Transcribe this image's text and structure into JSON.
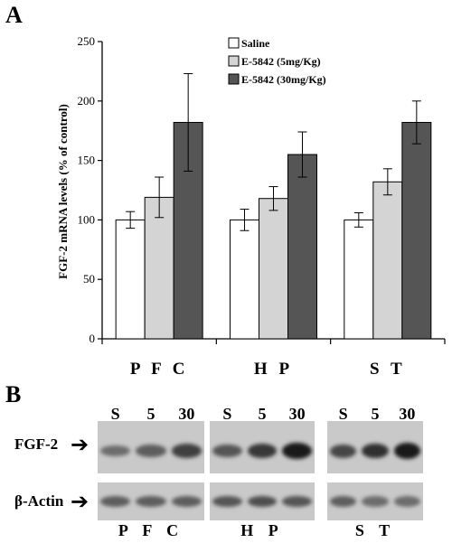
{
  "panel_a_label": "A",
  "panel_b_label": "B",
  "chart_data": {
    "type": "bar",
    "ylabel": "FGF-2 mRNA levels (% of control)",
    "ylim": [
      0,
      250
    ],
    "yticks": [
      0,
      50,
      100,
      150,
      200,
      250
    ],
    "categories": [
      "P F C",
      "H P",
      "S T"
    ],
    "legend_position": "top-right",
    "series": [
      {
        "name": "Saline",
        "color": "#ffffff",
        "values": [
          100,
          100,
          100
        ],
        "errors": [
          7,
          9,
          6
        ]
      },
      {
        "name": "E-5842 (5mg/Kg)",
        "color": "#d4d4d4",
        "values": [
          119,
          118,
          132
        ],
        "errors": [
          17,
          10,
          11
        ]
      },
      {
        "name": "E-5842 (30mg/Kg)",
        "color": "#555555",
        "values": [
          182,
          155,
          182
        ],
        "errors": [
          41,
          19,
          18
        ]
      }
    ]
  },
  "blot": {
    "lane_labels": [
      "S",
      "5",
      "30"
    ],
    "row_labels": [
      "FGF-2",
      "β-Actin"
    ],
    "group_labels": [
      "P F C",
      "H P",
      "S T"
    ],
    "fgf2_intensity": [
      [
        0.45,
        0.55,
        0.75
      ],
      [
        0.6,
        0.8,
        1.0
      ],
      [
        0.7,
        0.85,
        1.0
      ]
    ],
    "actin_intensity": [
      [
        0.55,
        0.55,
        0.55
      ],
      [
        0.6,
        0.65,
        0.6
      ],
      [
        0.55,
        0.45,
        0.45
      ]
    ]
  }
}
